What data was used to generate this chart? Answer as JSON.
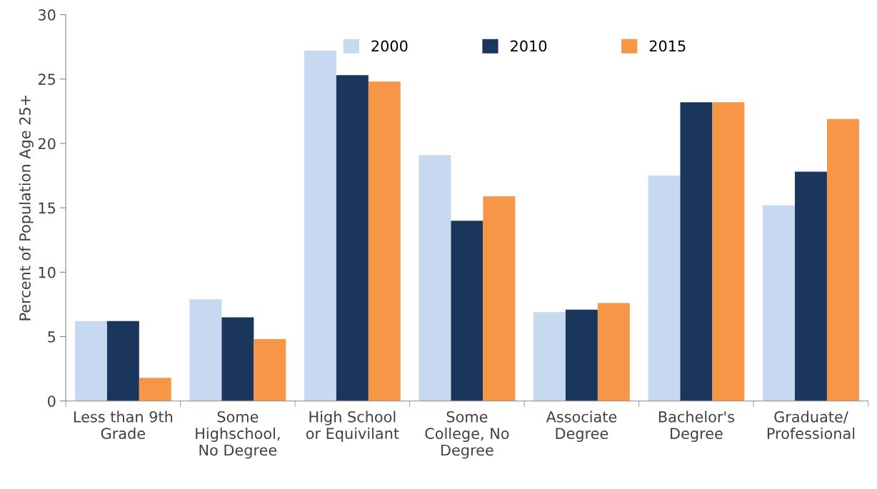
{
  "chart_data": {
    "type": "bar",
    "ylabel": "Percent of Population Age 25+",
    "categories": [
      "Less than 9th\nGrade",
      "Some\nHighschool,\nNo Degree",
      "High School\nor Equivilant",
      "Some\nCollege, No\nDegree",
      "Associate\nDegree",
      "Bachelor's\nDegree",
      "Graduate/\nProfessional"
    ],
    "series": [
      {
        "name": "2000",
        "color": "#c6d9f0",
        "values": [
          6.2,
          7.9,
          27.2,
          19.1,
          6.9,
          17.5,
          15.2
        ]
      },
      {
        "name": "2010",
        "color": "#1b365d",
        "values": [
          6.2,
          6.5,
          25.3,
          14.0,
          7.1,
          23.2,
          17.8
        ]
      },
      {
        "name": "2015",
        "color": "#f79646",
        "values": [
          1.8,
          4.8,
          24.8,
          15.9,
          7.6,
          23.2,
          21.9
        ]
      }
    ],
    "ylim": [
      0,
      30
    ],
    "yticks": [
      0,
      5,
      10,
      15,
      20,
      25,
      30
    ],
    "grid": false,
    "legend": "top"
  }
}
